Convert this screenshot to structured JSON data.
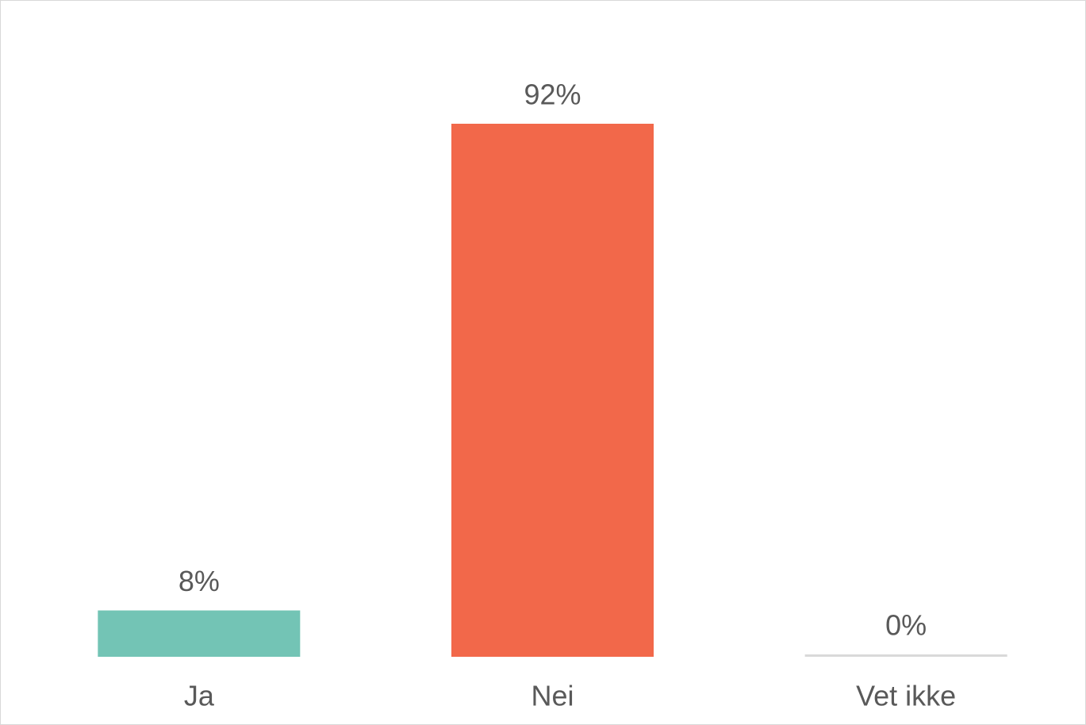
{
  "chart_data": {
    "type": "bar",
    "categories": [
      "Ja",
      "Nei",
      "Vet ikke"
    ],
    "values": [
      8,
      92,
      0
    ],
    "value_labels": [
      "8%",
      "92%",
      "0%"
    ],
    "colors": [
      "#73c4b5",
      "#f2684a",
      "#d9d9d9"
    ]
  }
}
